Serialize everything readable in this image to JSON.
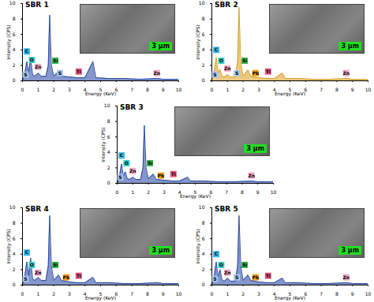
{
  "chart_data": [
    {
      "type": "line",
      "title": "SBR 1",
      "x_label": "Energy (KeV)",
      "y_label": "Intensity (CPS)",
      "inset_label": "3 μm",
      "x": [
        0,
        0.15,
        0.28,
        0.4,
        0.52,
        0.65,
        0.8,
        1.01,
        1.2,
        1.5,
        1.65,
        1.74,
        1.85,
        2.0,
        2.31,
        2.5,
        3.0,
        3.5,
        4.0,
        4.51,
        4.7,
        5.5,
        6.5,
        7.5,
        8.63,
        9.0,
        10
      ],
      "series": [
        {
          "color": "#1f3f9f",
          "values": [
            0,
            1.0,
            2.5,
            1.0,
            3.0,
            0.8,
            0.6,
            1.0,
            0.6,
            0.6,
            2.0,
            8.5,
            2.0,
            0.6,
            1.2,
            0.6,
            0.5,
            0.4,
            0.4,
            2.5,
            0.4,
            0.3,
            0.3,
            0.2,
            0.3,
            0.2,
            0.2
          ]
        }
      ],
      "xlim": [
        0,
        10
      ],
      "xticks": [
        0,
        1,
        2,
        3,
        4,
        5,
        6,
        7,
        8,
        9,
        10
      ],
      "ylim": [
        0,
        10
      ],
      "yticks": [
        0,
        2,
        4,
        6,
        8,
        10
      ],
      "annotations": [
        {
          "label": "C",
          "x": 0.28,
          "y": 3.8,
          "color": "#38b6e8"
        },
        {
          "label": "O",
          "x": 0.6,
          "y": 2.7,
          "color": "#38d0c8"
        },
        {
          "label": "Zn",
          "x": 1.0,
          "y": 1.8,
          "color": "#f4a6c6"
        },
        {
          "label": "S",
          "x": 0.2,
          "y": 0.8,
          "color": "#a8c8f0"
        },
        {
          "label": "Si",
          "x": 2.1,
          "y": 2.6,
          "color": "#3cb44b"
        },
        {
          "label": "S",
          "x": 2.4,
          "y": 1.0,
          "color": "#a8c8f0"
        },
        {
          "label": "Ti",
          "x": 3.6,
          "y": 1.2,
          "color": "#e75480"
        },
        {
          "label": "Zn",
          "x": 8.6,
          "y": 1.0,
          "color": "#f4a6c6"
        }
      ]
    },
    {
      "type": "line",
      "title": "SBR 2",
      "x_label": "Energy (KeV)",
      "y_label": "Intensity (CPS)",
      "inset_label": "3 μm",
      "x": [
        0,
        0.15,
        0.28,
        0.4,
        0.52,
        0.65,
        0.8,
        1.01,
        1.2,
        1.5,
        1.65,
        1.74,
        1.85,
        2.0,
        2.31,
        2.5,
        3.0,
        3.5,
        4.0,
        4.51,
        4.7,
        5.5,
        6.5,
        7.5,
        8.63,
        9.0,
        10
      ],
      "series": [
        {
          "color": "#d89a1a",
          "values": [
            0,
            1.2,
            3.0,
            1.0,
            1.5,
            0.6,
            0.5,
            0.8,
            0.5,
            0.5,
            2.5,
            9.5,
            2.5,
            0.6,
            1.4,
            0.6,
            0.4,
            0.3,
            0.3,
            1.0,
            0.3,
            0.3,
            0.2,
            0.2,
            0.3,
            0.2,
            0.2
          ]
        }
      ],
      "xlim": [
        0,
        10
      ],
      "xticks": [
        0,
        1,
        2,
        3,
        4,
        5,
        6,
        7,
        8,
        9,
        10
      ],
      "ylim": [
        0,
        10
      ],
      "yticks": [
        0,
        2,
        4,
        6,
        8,
        10
      ],
      "annotations": [
        {
          "label": "C",
          "x": 0.28,
          "y": 4.0,
          "color": "#38b6e8"
        },
        {
          "label": "O",
          "x": 0.6,
          "y": 2.6,
          "color": "#38d0c8"
        },
        {
          "label": "Zn",
          "x": 1.0,
          "y": 1.6,
          "color": "#f4a6c6"
        },
        {
          "label": "S",
          "x": 0.2,
          "y": 0.8,
          "color": "#a8c8f0"
        },
        {
          "label": "Si",
          "x": 2.1,
          "y": 2.6,
          "color": "#3cb44b"
        },
        {
          "label": "S",
          "x": 1.6,
          "y": 1.0,
          "color": "#a8c8f0"
        },
        {
          "label": "Pb",
          "x": 2.8,
          "y": 1.0,
          "color": "#f39c12"
        },
        {
          "label": "Ti",
          "x": 3.6,
          "y": 1.2,
          "color": "#e75480"
        },
        {
          "label": "Zn",
          "x": 8.6,
          "y": 1.0,
          "color": "#f4a6c6"
        }
      ]
    },
    {
      "type": "line",
      "title": "SBR 3",
      "x_label": "Energy (KeV)",
      "y_label": "Intensity (CPS)",
      "inset_label": "3 μm",
      "x": [
        0,
        0.15,
        0.28,
        0.4,
        0.52,
        0.65,
        0.8,
        1.01,
        1.2,
        1.5,
        1.65,
        1.74,
        1.85,
        2.0,
        2.31,
        2.5,
        3.0,
        3.5,
        4.0,
        4.51,
        4.7,
        5.5,
        6.5,
        7.5,
        8.63,
        9.0,
        10
      ],
      "series": [
        {
          "color": "#1f3f9f",
          "values": [
            0,
            1.0,
            2.5,
            0.9,
            1.5,
            0.6,
            0.5,
            0.8,
            0.5,
            0.5,
            2.0,
            7.5,
            2.0,
            0.6,
            1.2,
            0.5,
            0.4,
            0.3,
            0.3,
            0.8,
            0.3,
            0.3,
            0.2,
            0.2,
            0.3,
            0.2,
            0.2
          ]
        }
      ],
      "xlim": [
        0,
        10
      ],
      "xticks": [
        0,
        1,
        2,
        3,
        4,
        5,
        6,
        7,
        8,
        9,
        10
      ],
      "ylim": [
        0,
        10
      ],
      "yticks": [
        0,
        2,
        4,
        6,
        8,
        10
      ],
      "annotations": [
        {
          "label": "C",
          "x": 0.28,
          "y": 3.6,
          "color": "#38b6e8"
        },
        {
          "label": "O",
          "x": 0.6,
          "y": 2.6,
          "color": "#38d0c8"
        },
        {
          "label": "Zn",
          "x": 1.0,
          "y": 1.6,
          "color": "#f4a6c6"
        },
        {
          "label": "S",
          "x": 0.2,
          "y": 0.8,
          "color": "#a8c8f0"
        },
        {
          "label": "Si",
          "x": 2.1,
          "y": 2.6,
          "color": "#3cb44b"
        },
        {
          "label": "Pb",
          "x": 2.8,
          "y": 1.0,
          "color": "#f39c12"
        },
        {
          "label": "Ti",
          "x": 3.6,
          "y": 1.2,
          "color": "#e75480"
        },
        {
          "label": "Zn",
          "x": 8.6,
          "y": 1.0,
          "color": "#f4a6c6"
        }
      ]
    },
    {
      "type": "line",
      "title": "SBR 4",
      "x_label": "Energy (KeV)",
      "y_label": "Intensity (CPS)",
      "inset_label": "3 μm",
      "x": [
        0,
        0.15,
        0.28,
        0.4,
        0.52,
        0.65,
        0.8,
        1.01,
        1.2,
        1.5,
        1.65,
        1.74,
        1.85,
        2.0,
        2.31,
        2.5,
        3.0,
        3.5,
        4.0,
        4.51,
        4.7,
        5.5,
        6.5,
        7.5,
        8.63,
        9.0,
        10
      ],
      "series": [
        {
          "color": "#1f3f9f",
          "values": [
            0,
            1.2,
            3.0,
            1.2,
            3.5,
            0.8,
            0.6,
            1.0,
            0.6,
            0.6,
            2.5,
            9.0,
            2.5,
            0.6,
            1.3,
            0.6,
            0.4,
            0.3,
            0.3,
            1.0,
            0.3,
            0.3,
            0.2,
            0.2,
            0.3,
            0.2,
            0.2
          ]
        }
      ],
      "xlim": [
        0,
        10
      ],
      "xticks": [
        0,
        1,
        2,
        3,
        4,
        5,
        6,
        7,
        8,
        9,
        10
      ],
      "ylim": [
        0,
        10
      ],
      "yticks": [
        0,
        2,
        4,
        6,
        8,
        10
      ],
      "annotations": [
        {
          "label": "C",
          "x": 0.28,
          "y": 4.2,
          "color": "#38b6e8"
        },
        {
          "label": "O",
          "x": 0.6,
          "y": 2.6,
          "color": "#38d0c8"
        },
        {
          "label": "Zn",
          "x": 1.0,
          "y": 1.6,
          "color": "#f4a6c6"
        },
        {
          "label": "S",
          "x": 0.2,
          "y": 0.8,
          "color": "#a8c8f0"
        },
        {
          "label": "Si",
          "x": 2.1,
          "y": 2.6,
          "color": "#3cb44b"
        },
        {
          "label": "Pb",
          "x": 2.8,
          "y": 1.0,
          "color": "#f39c12"
        },
        {
          "label": "Ti",
          "x": 3.6,
          "y": 1.2,
          "color": "#e75480"
        }
      ]
    },
    {
      "type": "line",
      "title": "SBR 5",
      "x_label": "Energy (KeV)",
      "y_label": "Intensity (CPS)",
      "inset_label": "3 μm",
      "x": [
        0,
        0.15,
        0.28,
        0.4,
        0.52,
        0.65,
        0.8,
        1.01,
        1.2,
        1.5,
        1.65,
        1.74,
        1.85,
        2.0,
        2.31,
        2.5,
        3.0,
        3.5,
        4.0,
        4.51,
        4.7,
        5.5,
        6.5,
        7.5,
        8.63,
        9.0,
        10
      ],
      "series": [
        {
          "color": "#1f3f9f",
          "values": [
            0,
            1.2,
            3.0,
            1.0,
            2.0,
            0.7,
            0.5,
            0.9,
            0.5,
            0.5,
            2.5,
            9.0,
            2.5,
            0.6,
            1.3,
            0.6,
            0.4,
            0.3,
            0.3,
            0.9,
            0.3,
            0.3,
            0.2,
            0.2,
            0.3,
            0.2,
            0.2
          ]
        }
      ],
      "xlim": [
        0,
        10
      ],
      "xticks": [
        0,
        1,
        2,
        3,
        4,
        5,
        6,
        7,
        8,
        9,
        10
      ],
      "ylim": [
        0,
        10
      ],
      "yticks": [
        0,
        2,
        4,
        6,
        8,
        10
      ],
      "annotations": [
        {
          "label": "C",
          "x": 0.28,
          "y": 4.0,
          "color": "#38b6e8"
        },
        {
          "label": "O",
          "x": 0.6,
          "y": 2.6,
          "color": "#38d0c8"
        },
        {
          "label": "Zn",
          "x": 1.0,
          "y": 1.6,
          "color": "#f4a6c6"
        },
        {
          "label": "S",
          "x": 0.2,
          "y": 0.8,
          "color": "#a8c8f0"
        },
        {
          "label": "Si",
          "x": 2.1,
          "y": 2.6,
          "color": "#3cb44b"
        },
        {
          "label": "S",
          "x": 1.6,
          "y": 1.0,
          "color": "#a8c8f0"
        },
        {
          "label": "Pb",
          "x": 2.8,
          "y": 1.0,
          "color": "#f39c12"
        },
        {
          "label": "Ti",
          "x": 3.6,
          "y": 1.2,
          "color": "#e75480"
        },
        {
          "label": "Zn",
          "x": 8.6,
          "y": 1.0,
          "color": "#f4a6c6"
        }
      ]
    }
  ]
}
